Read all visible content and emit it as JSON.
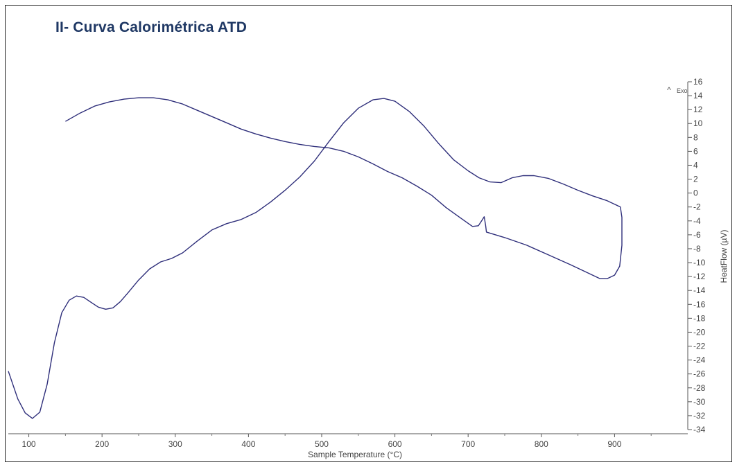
{
  "page": {
    "title": "II- Curva Calorimétrica ATD"
  },
  "chart_data": {
    "type": "line",
    "title": "",
    "xlabel": "Sample Temperature (°C)",
    "ylabel": "HeatFlow (µV)",
    "xlim": [
      72,
      1000
    ],
    "ylim": [
      -34,
      16
    ],
    "x_ticks": [
      100,
      200,
      300,
      400,
      500,
      600,
      700,
      800,
      900
    ],
    "y_ticks": [
      16,
      14,
      12,
      10,
      8,
      6,
      4,
      2,
      0,
      -2,
      -4,
      -6,
      -8,
      -10,
      -12,
      -14,
      -16,
      -18,
      -20,
      -22,
      -24,
      -26,
      -28,
      -30,
      -32,
      -34
    ],
    "exo_label": "Exo",
    "exo_marker": "^",
    "line_color": "#2e2e7a",
    "grid": false,
    "series": [
      {
        "points": [
          [
            72,
            -25.6
          ],
          [
            85,
            -29.6
          ],
          [
            95,
            -31.6
          ],
          [
            105,
            -32.4
          ],
          [
            115,
            -31.5
          ],
          [
            125,
            -27.5
          ],
          [
            135,
            -21.5
          ],
          [
            145,
            -17.2
          ],
          [
            155,
            -15.4
          ],
          [
            165,
            -14.8
          ],
          [
            175,
            -15.0
          ],
          [
            185,
            -15.7
          ],
          [
            195,
            -16.4
          ],
          [
            205,
            -16.7
          ],
          [
            215,
            -16.5
          ],
          [
            225,
            -15.6
          ],
          [
            235,
            -14.4
          ],
          [
            250,
            -12.5
          ],
          [
            265,
            -10.9
          ],
          [
            280,
            -9.9
          ],
          [
            295,
            -9.4
          ],
          [
            310,
            -8.6
          ],
          [
            330,
            -6.9
          ],
          [
            350,
            -5.3
          ],
          [
            370,
            -4.4
          ],
          [
            390,
            -3.8
          ],
          [
            410,
            -2.8
          ],
          [
            430,
            -1.3
          ],
          [
            450,
            0.4
          ],
          [
            470,
            2.3
          ],
          [
            490,
            4.6
          ],
          [
            510,
            7.4
          ],
          [
            530,
            10.1
          ],
          [
            550,
            12.2
          ],
          [
            570,
            13.4
          ],
          [
            585,
            13.6
          ],
          [
            600,
            13.2
          ],
          [
            620,
            11.7
          ],
          [
            640,
            9.6
          ],
          [
            660,
            7.1
          ],
          [
            680,
            4.8
          ],
          [
            700,
            3.2
          ],
          [
            715,
            2.2
          ],
          [
            730,
            1.6
          ],
          [
            745,
            1.5
          ],
          [
            760,
            2.2
          ],
          [
            775,
            2.5
          ],
          [
            790,
            2.5
          ],
          [
            810,
            2.1
          ],
          [
            830,
            1.3
          ],
          [
            850,
            0.4
          ],
          [
            870,
            -0.4
          ],
          [
            890,
            -1.1
          ],
          [
            900,
            -1.6
          ],
          [
            908,
            -2.0
          ],
          [
            910,
            -3.5
          ],
          [
            910,
            -7.5
          ],
          [
            907,
            -10.5
          ],
          [
            900,
            -11.8
          ],
          [
            890,
            -12.3
          ],
          [
            880,
            -12.3
          ],
          [
            860,
            -11.3
          ],
          [
            840,
            -10.3
          ],
          [
            810,
            -8.9
          ],
          [
            780,
            -7.5
          ],
          [
            750,
            -6.4
          ],
          [
            725,
            -5.6
          ],
          [
            724,
            -4.7
          ],
          [
            722,
            -3.4
          ],
          [
            719,
            -3.9
          ],
          [
            714,
            -4.7
          ],
          [
            706,
            -4.8
          ],
          [
            690,
            -3.6
          ],
          [
            670,
            -2.1
          ],
          [
            650,
            -0.3
          ],
          [
            630,
            1.0
          ],
          [
            610,
            2.2
          ],
          [
            590,
            3.1
          ],
          [
            570,
            4.2
          ],
          [
            550,
            5.2
          ],
          [
            530,
            6.0
          ],
          [
            510,
            6.5
          ],
          [
            490,
            6.7
          ],
          [
            470,
            7.0
          ],
          [
            450,
            7.4
          ],
          [
            430,
            7.9
          ],
          [
            410,
            8.5
          ],
          [
            390,
            9.2
          ],
          [
            370,
            10.1
          ],
          [
            350,
            11.0
          ],
          [
            330,
            11.9
          ],
          [
            310,
            12.8
          ],
          [
            290,
            13.4
          ],
          [
            270,
            13.7
          ],
          [
            250,
            13.7
          ],
          [
            230,
            13.5
          ],
          [
            210,
            13.1
          ],
          [
            190,
            12.5
          ],
          [
            170,
            11.5
          ],
          [
            150,
            10.3
          ]
        ]
      }
    ]
  }
}
